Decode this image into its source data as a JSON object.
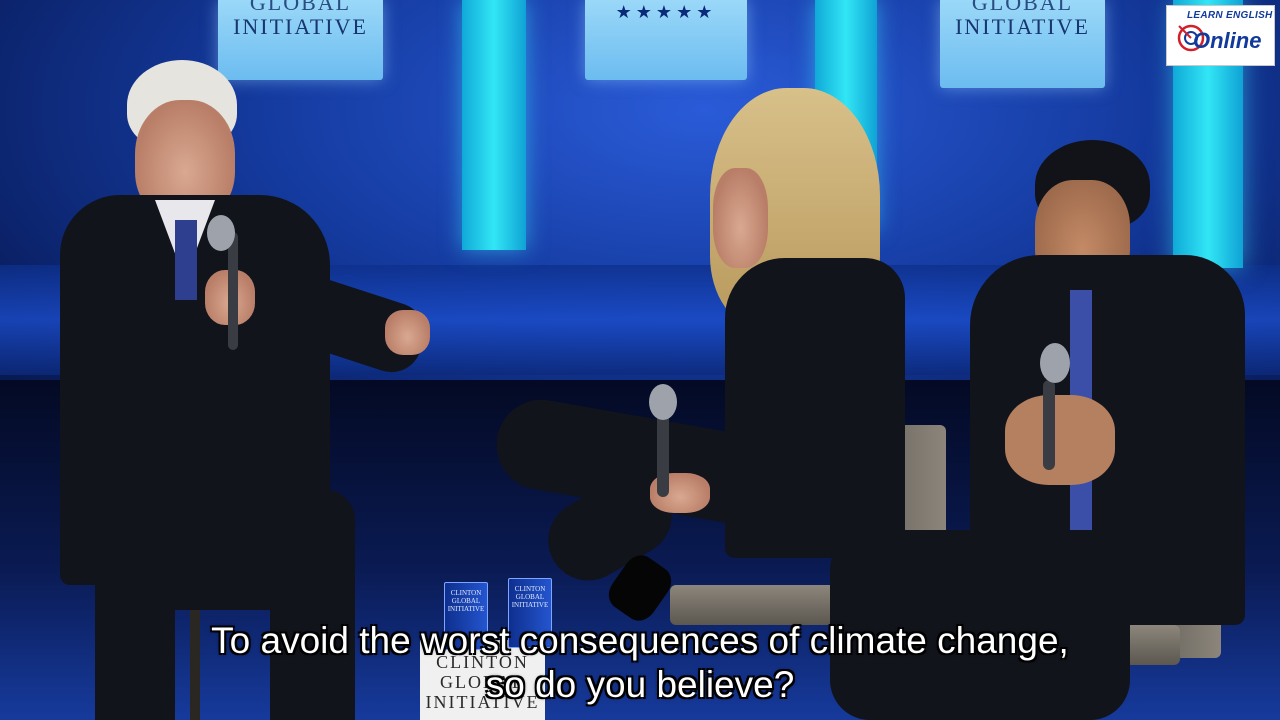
{
  "video": {
    "stage_signage": {
      "banner_left": {
        "line1": "GLOBAL",
        "line2": "INITIATIVE"
      },
      "banner_right": {
        "line1": "GLOBAL",
        "line2": "INITIATIVE"
      },
      "banner_center_stars": "★★★★★"
    },
    "table_sign": {
      "line1": "CLINTON",
      "line2": "GLOBAL",
      "line3": "INITIATIVE"
    },
    "cup_text": {
      "line1": "CLINTON",
      "line2": "GLOBAL",
      "line3": "INITIATIVE"
    },
    "watermark": {
      "line1": "LEARN ENGLISH",
      "line2": "Online"
    },
    "subtitles": {
      "line1": "To avoid the worst consequences of climate change,",
      "line2": "so do you believe?"
    }
  },
  "colors": {
    "backdrop": "#143a9e",
    "pillar": "#32e6f5",
    "subtitle_text": "#ffffff",
    "watermark_blue": "#123a9c",
    "watermark_red": "#d0202a"
  }
}
